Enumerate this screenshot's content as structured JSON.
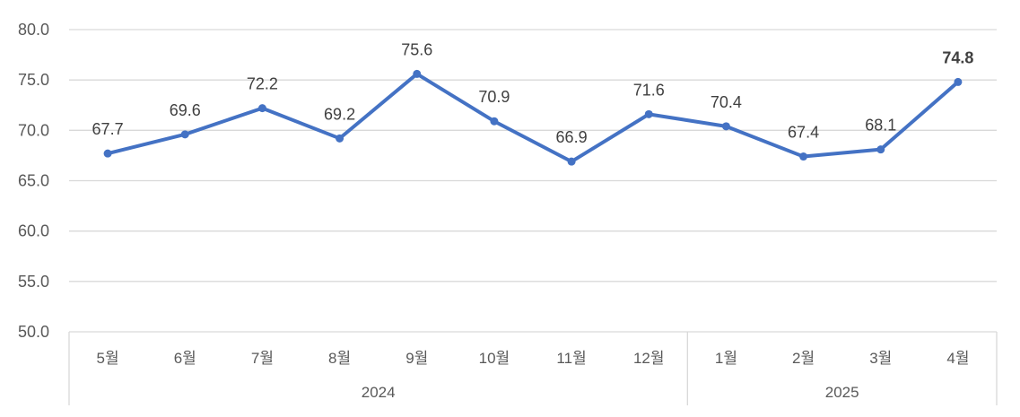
{
  "chart_data": {
    "type": "line",
    "title": "",
    "xlabel": "",
    "ylabel": "",
    "ylim": [
      50,
      80
    ],
    "yticks": [
      "50.0",
      "55.0",
      "60.0",
      "65.0",
      "70.0",
      "75.0",
      "80.0"
    ],
    "grid": true,
    "legend": null,
    "categories": [
      "5월",
      "6월",
      "7월",
      "8월",
      "9월",
      "10월",
      "11월",
      "12월",
      "1월",
      "2월",
      "3월",
      "4월"
    ],
    "category_groups": [
      {
        "label": "2024",
        "start": 0,
        "end": 7
      },
      {
        "label": "2025",
        "start": 8,
        "end": 11
      }
    ],
    "series": [
      {
        "name": "",
        "color": "#4472C4",
        "values": [
          67.7,
          69.6,
          72.2,
          69.2,
          75.6,
          70.9,
          66.9,
          71.6,
          70.4,
          67.4,
          68.1,
          74.8
        ],
        "labels": [
          "67.7",
          "69.6",
          "72.2",
          "69.2",
          "75.6",
          "70.9",
          "66.9",
          "71.6",
          "70.4",
          "67.4",
          "68.1",
          "74.8"
        ],
        "emphasized_label_index": 11
      }
    ]
  },
  "style": {
    "line_color": "#4472C4",
    "grid_color": "#d9d9d9",
    "axis_text_color": "#595959",
    "label_color": "#404040"
  }
}
